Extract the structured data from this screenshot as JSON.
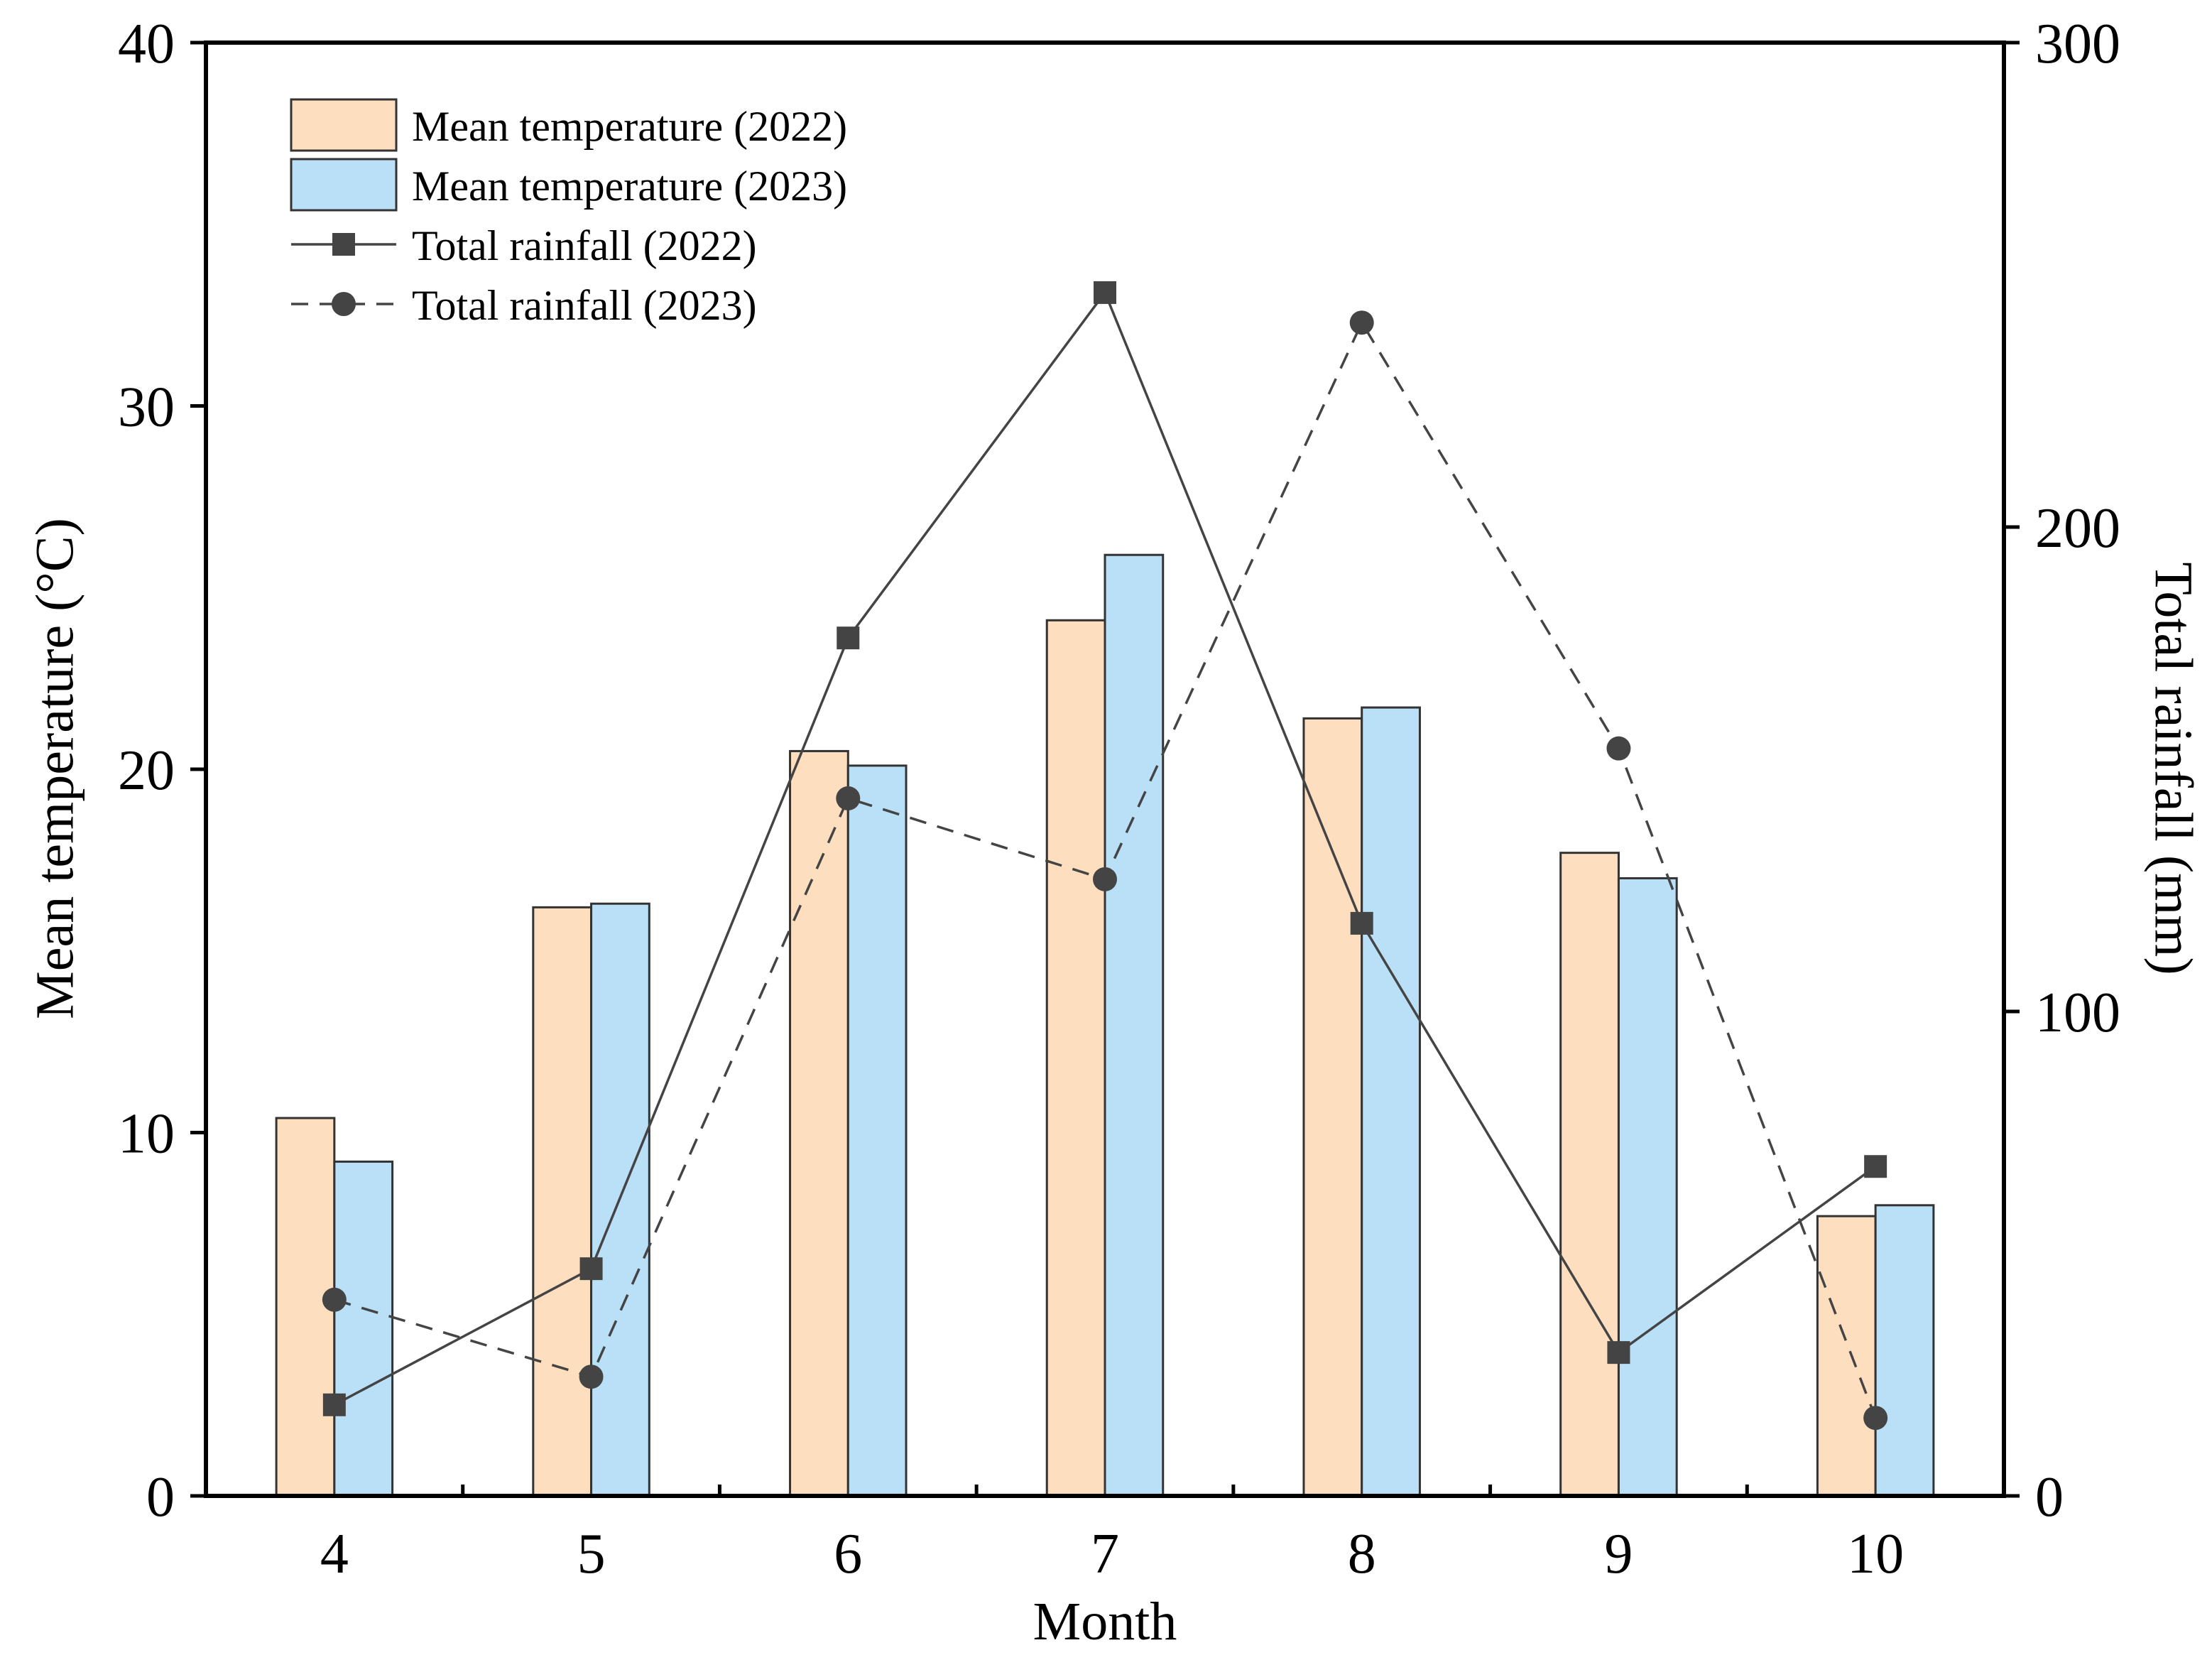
{
  "chart_data": {
    "type": "bar",
    "categories": [
      "4",
      "5",
      "6",
      "7",
      "8",
      "9",
      "10"
    ],
    "xlabel": "Month",
    "ylabel_left": "Mean temperature (°C)",
    "ylabel_right": "Total rainfall (mm)",
    "ylim_left": [
      0,
      40
    ],
    "ylim_right": [
      0,
      300
    ],
    "yticks_left": [
      "0",
      "10",
      "20",
      "30",
      "40"
    ],
    "yticks_right": [
      "0",
      "100",
      "200",
      "300"
    ],
    "grid": false,
    "legend": "top-left",
    "series": [
      {
        "name": "Mean temperature (2022)",
        "type": "bar",
        "axis": "left",
        "color": "#FDDFC0",
        "values": [
          10.4,
          16.2,
          20.5,
          24.1,
          21.4,
          17.7,
          7.7
        ]
      },
      {
        "name": "Mean temperature (2023)",
        "type": "bar",
        "axis": "left",
        "color": "#B9E0F7",
        "values": [
          9.2,
          16.3,
          20.1,
          25.9,
          21.7,
          17.0,
          8.0
        ]
      },
      {
        "name": "Total rainfall (2022)",
        "type": "line",
        "axis": "right",
        "color": "#444444",
        "marker": "square",
        "line_style": "solid",
        "values": [
          18.8,
          46.9,
          177.1,
          248.4,
          118.2,
          29.6,
          68.0
        ]
      },
      {
        "name": "Total rainfall (2023)",
        "type": "line",
        "axis": "right",
        "color": "#444444",
        "marker": "circle",
        "line_style": "dashed",
        "values": [
          40.5,
          24.6,
          144.0,
          127.3,
          242.2,
          154.3,
          16.1
        ]
      }
    ]
  }
}
